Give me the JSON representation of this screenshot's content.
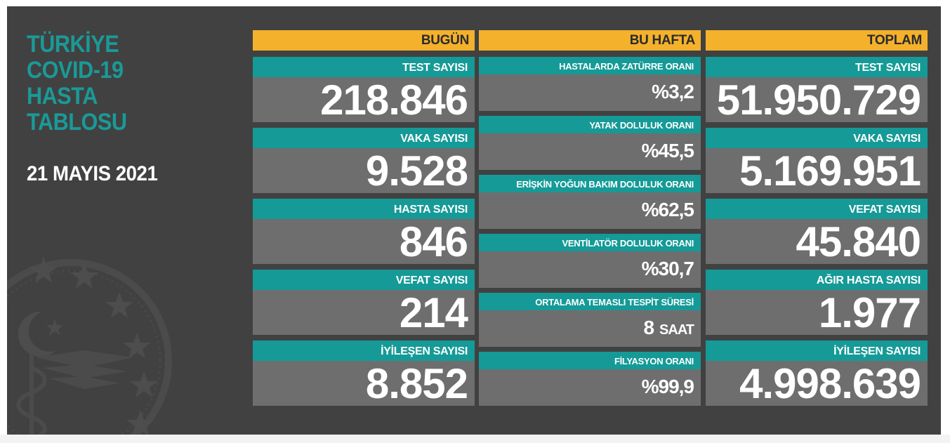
{
  "header": {
    "title_lines": [
      "TÜRKİYE",
      "COVID-19",
      "HASTA",
      "TABLOSU"
    ],
    "date": "21 MAYIS 2021"
  },
  "today": {
    "heading": "BUGÜN",
    "cards": [
      {
        "label": "TEST SAYISI",
        "value": "218.846"
      },
      {
        "label": "VAKA SAYISI",
        "value": "9.528"
      },
      {
        "label": "HASTA SAYISI",
        "value": "846"
      },
      {
        "label": "VEFAT SAYISI",
        "value": "214"
      },
      {
        "label": "İYİLEŞEN SAYISI",
        "value": "8.852"
      }
    ]
  },
  "week": {
    "heading": "BU HAFTA",
    "cards": [
      {
        "label": "HASTALARDA ZATÜRRE ORANI",
        "value": "%3,2"
      },
      {
        "label": "YATAK DOLULUK ORANI",
        "value": "%45,5"
      },
      {
        "label": "ERİŞKİN YOĞUN BAKIM DOLULUK ORANI",
        "value": "%62,5"
      },
      {
        "label": "VENTİLATÖR DOLULUK ORANI",
        "value": "%30,7"
      },
      {
        "label": "ORTALAMA TEMASLI TESPİT SÜRESİ",
        "value": "8",
        "unit": "SAAT"
      },
      {
        "label": "FİLYASYON ORANI",
        "value": "%99,9"
      }
    ]
  },
  "total": {
    "heading": "TOPLAM",
    "cards": [
      {
        "label": "TEST SAYISI",
        "value": "51.950.729"
      },
      {
        "label": "VAKA SAYISI",
        "value": "5.169.951"
      },
      {
        "label": "VEFAT SAYISI",
        "value": "45.840"
      },
      {
        "label": "AĞIR HASTA SAYISI",
        "value": "1.977"
      },
      {
        "label": "İYİLEŞEN SAYISI",
        "value": "4.998.639"
      }
    ]
  },
  "colors": {
    "background": "#414142",
    "teal": "#159a97",
    "header_yellow": "#f4b12b",
    "value_gray": "#6e6e6f"
  }
}
